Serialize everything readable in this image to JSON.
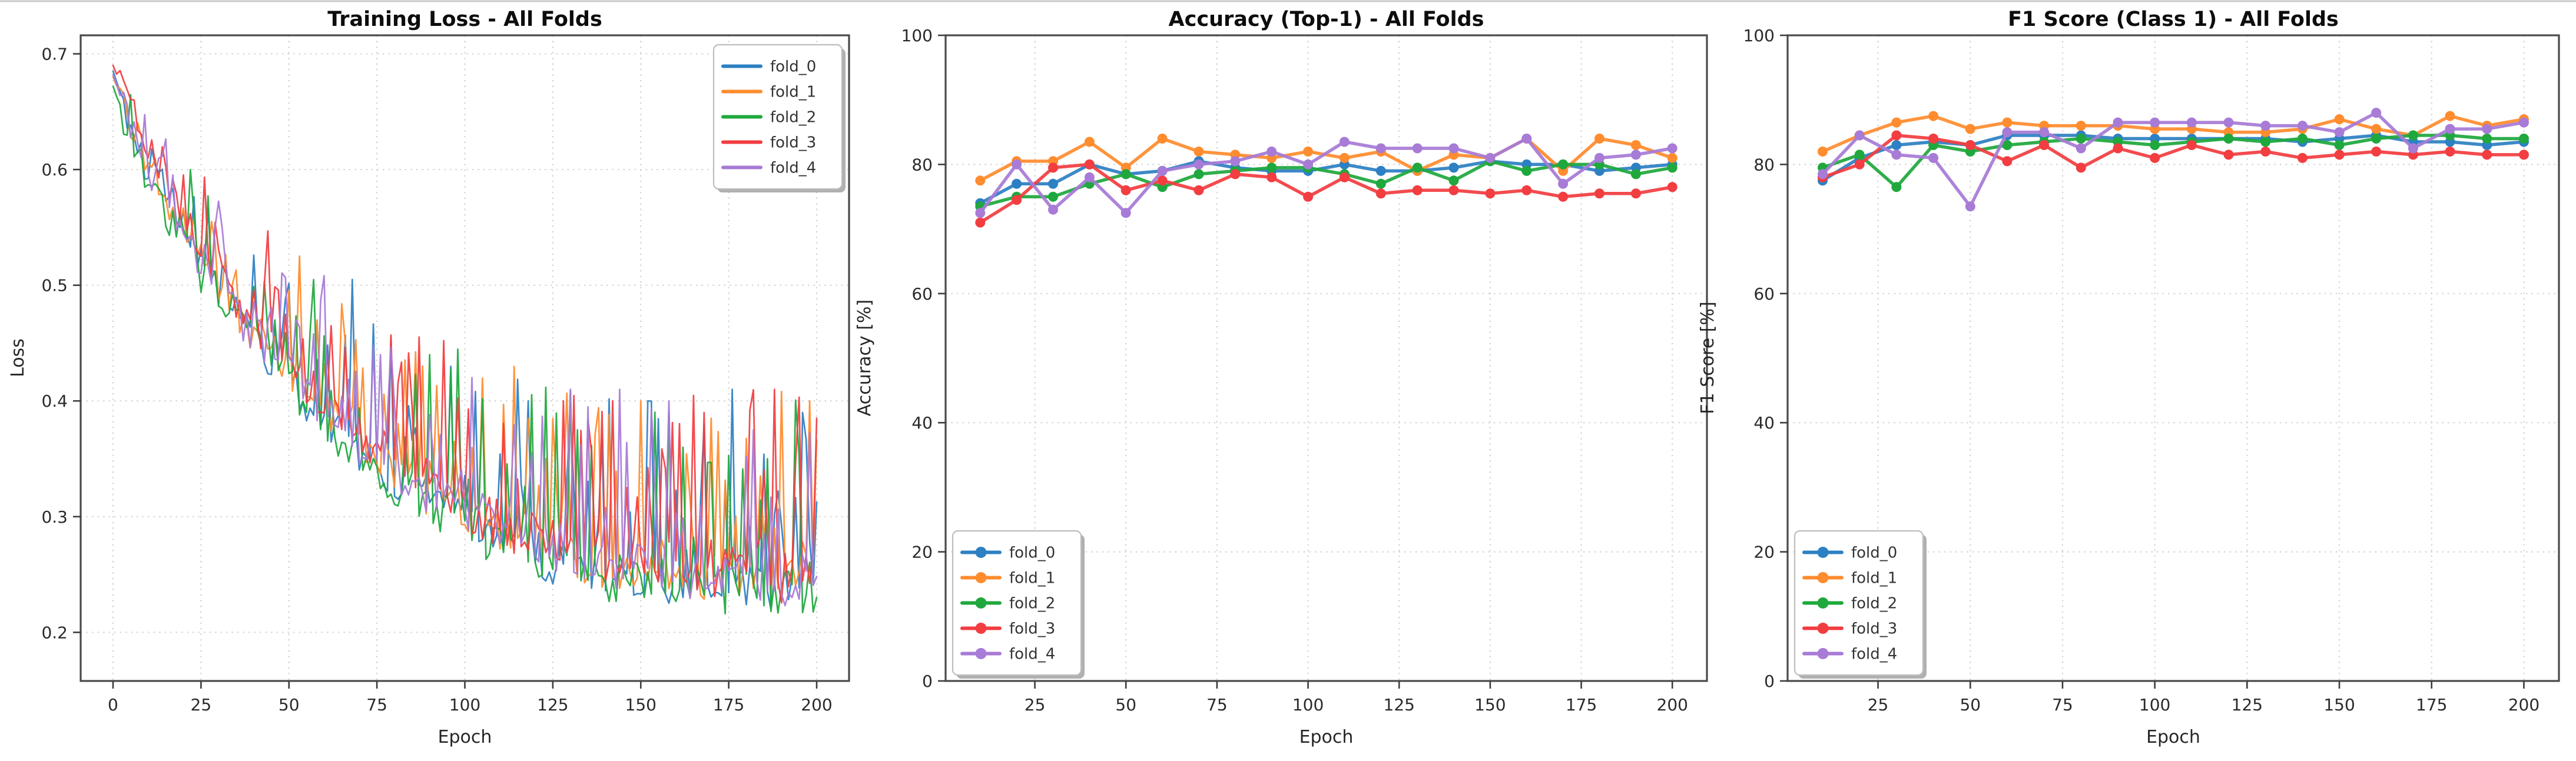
{
  "figure": {
    "background": "#ffffff",
    "top_border_color": "#c9c9c9"
  },
  "colors": {
    "fold_0": "#2d80c3",
    "fold_1": "#ff8c2e",
    "fold_2": "#1fa83d",
    "fold_3": "#f23d41",
    "fold_4": "#a77bd6",
    "spine": "#4a4a4a",
    "grid": "#d4d4d4",
    "tick": "#3d3d3d",
    "legend_border": "#bdbdbd",
    "legend_shadow": "#b0b0b0",
    "legend_background": "#ffffff"
  },
  "legend_labels": [
    "fold_0",
    "fold_1",
    "fold_2",
    "fold_3",
    "fold_4"
  ],
  "chart_data": [
    {
      "type": "line",
      "title": "Training Loss - All Folds",
      "xlabel": "Epoch",
      "ylabel": "Loss",
      "xlim": [
        -9.2,
        209.2
      ],
      "ylim": [
        0.158,
        0.716
      ],
      "xticks": [
        0,
        25,
        50,
        75,
        100,
        125,
        150,
        175,
        200
      ],
      "yticks": [
        0.2,
        0.3,
        0.4,
        0.5,
        0.6,
        0.7
      ],
      "ytick_decimals": 1,
      "grid": true,
      "markers": false,
      "legend_position": "upper-right",
      "epoch_max": 200,
      "trend_epochs": [
        0,
        10,
        20,
        30,
        40,
        50,
        60,
        70,
        80,
        90,
        100,
        110,
        120,
        130,
        140,
        150,
        160,
        170,
        180,
        190,
        200
      ],
      "noise": {
        "base_wiggle": 0.03,
        "wiggle_scale": 0.03,
        "spike_chance": 0.42,
        "spike_amp": 0.16,
        "spike_ref": 0.72,
        "spike_norm": 0.47,
        "clamp_min": 0.207,
        "clamp_max": 0.705
      },
      "series": [
        {
          "name": "fold_0",
          "color": "fold_0",
          "seed": 11,
          "trend": [
            0.685,
            0.595,
            0.545,
            0.49,
            0.455,
            0.415,
            0.385,
            0.355,
            0.335,
            0.315,
            0.295,
            0.28,
            0.268,
            0.258,
            0.252,
            0.248,
            0.243,
            0.242,
            0.238,
            0.235,
            0.24
          ],
          "spikes": [
            [
              68,
              0.505
            ],
            [
              96,
              0.43
            ],
            [
              118,
              0.4
            ],
            [
              152,
              0.4
            ],
            [
              176,
              0.41
            ],
            [
              196,
              0.39
            ]
          ]
        },
        {
          "name": "fold_1",
          "color": "fold_1",
          "seed": 22,
          "trend": [
            0.68,
            0.605,
            0.55,
            0.5,
            0.46,
            0.42,
            0.39,
            0.36,
            0.34,
            0.32,
            0.3,
            0.285,
            0.272,
            0.262,
            0.256,
            0.252,
            0.247,
            0.246,
            0.242,
            0.24,
            0.255
          ],
          "spikes": [
            [
              28,
              0.555
            ],
            [
              58,
              0.47
            ],
            [
              88,
              0.43
            ],
            [
              118,
              0.385
            ],
            [
              150,
              0.4
            ],
            [
              170,
              0.385
            ],
            [
              198,
              0.4
            ]
          ]
        },
        {
          "name": "fold_2",
          "color": "fold_2",
          "seed": 33,
          "trend": [
            0.672,
            0.585,
            0.535,
            0.483,
            0.448,
            0.41,
            0.378,
            0.35,
            0.328,
            0.31,
            0.292,
            0.278,
            0.265,
            0.255,
            0.248,
            0.243,
            0.238,
            0.234,
            0.23,
            0.228,
            0.235
          ],
          "spikes": [
            [
              22,
              0.6
            ],
            [
              46,
              0.47
            ],
            [
              90,
              0.44
            ],
            [
              132,
              0.375
            ],
            [
              162,
              0.36
            ],
            [
              186,
              0.35
            ]
          ]
        },
        {
          "name": "fold_3",
          "color": "fold_3",
          "seed": 44,
          "trend": [
            0.69,
            0.615,
            0.56,
            0.508,
            0.468,
            0.428,
            0.398,
            0.368,
            0.348,
            0.328,
            0.308,
            0.293,
            0.282,
            0.272,
            0.266,
            0.262,
            0.256,
            0.252,
            0.248,
            0.247,
            0.252
          ],
          "spikes": [
            [
              43,
              0.5
            ],
            [
              62,
              0.465
            ],
            [
              94,
              0.452
            ],
            [
              128,
              0.4
            ],
            [
              142,
              0.4
            ],
            [
              168,
              0.39
            ],
            [
              188,
              0.41
            ],
            [
              200,
              0.385
            ]
          ]
        },
        {
          "name": "fold_4",
          "color": "fold_4",
          "seed": 55,
          "trend": [
            0.682,
            0.6,
            0.548,
            0.495,
            0.458,
            0.419,
            0.388,
            0.358,
            0.338,
            0.32,
            0.302,
            0.288,
            0.276,
            0.266,
            0.26,
            0.255,
            0.25,
            0.248,
            0.244,
            0.242,
            0.248
          ],
          "spikes": [
            [
              52,
              0.47
            ],
            [
              76,
              0.44
            ],
            [
              102,
              0.42
            ],
            [
              130,
              0.41
            ],
            [
              144,
              0.41
            ],
            [
              158,
              0.4
            ],
            [
              182,
              0.375
            ]
          ]
        }
      ]
    },
    {
      "type": "line",
      "title": "Accuracy (Top-1) - All Folds",
      "xlabel": "Epoch",
      "ylabel": "Accuracy [%]",
      "xlim": [
        0.5,
        209.5
      ],
      "ylim": [
        0,
        100
      ],
      "xticks": [
        25,
        50,
        75,
        100,
        125,
        150,
        175,
        200
      ],
      "yticks": [
        0,
        20,
        40,
        60,
        80,
        100
      ],
      "ytick_decimals": 0,
      "grid": true,
      "markers": true,
      "legend_position": "lower-left",
      "x": [
        10,
        20,
        30,
        40,
        50,
        60,
        70,
        80,
        90,
        100,
        110,
        120,
        130,
        140,
        150,
        160,
        170,
        180,
        190,
        200
      ],
      "series": [
        {
          "name": "fold_0",
          "color": "fold_0",
          "values": [
            74,
            77,
            77,
            80,
            78.5,
            79,
            80.5,
            79.5,
            79,
            79,
            80,
            79,
            79,
            79.5,
            80.5,
            80,
            80,
            79,
            79.5,
            80
          ]
        },
        {
          "name": "fold_1",
          "color": "fold_1",
          "values": [
            77.5,
            80.5,
            80.5,
            83.5,
            79.5,
            84,
            82,
            81.5,
            81,
            82,
            81,
            82,
            79,
            81.5,
            81,
            84,
            79,
            84,
            83,
            81
          ]
        },
        {
          "name": "fold_2",
          "color": "fold_2",
          "values": [
            73.5,
            75,
            75,
            77,
            78.5,
            76.5,
            78.5,
            79,
            79.5,
            79.5,
            78.5,
            77,
            79.5,
            77.5,
            80.5,
            79,
            80,
            80,
            78.5,
            79.5
          ]
        },
        {
          "name": "fold_3",
          "color": "fold_3",
          "values": [
            71,
            74.5,
            79.5,
            80,
            76,
            77.5,
            76,
            78.5,
            78,
            75,
            78,
            75.5,
            76,
            76,
            75.5,
            76,
            75,
            75.5,
            75.5,
            76.5
          ]
        },
        {
          "name": "fold_4",
          "color": "fold_4",
          "values": [
            72.5,
            80,
            73,
            78,
            72.5,
            79,
            80,
            80.5,
            82,
            80,
            83.5,
            82.5,
            82.5,
            82.5,
            81,
            84,
            77,
            81,
            81.5,
            82.5
          ]
        }
      ]
    },
    {
      "type": "line",
      "title": "F1 Score (Class 1) - All Folds",
      "xlabel": "Epoch",
      "ylabel": "F1 Score [%]",
      "xlim": [
        0.5,
        209.5
      ],
      "ylim": [
        0,
        100
      ],
      "xticks": [
        25,
        50,
        75,
        100,
        125,
        150,
        175,
        200
      ],
      "yticks": [
        0,
        20,
        40,
        60,
        80,
        100
      ],
      "ytick_decimals": 0,
      "grid": true,
      "markers": true,
      "legend_position": "lower-left",
      "x": [
        10,
        20,
        30,
        40,
        50,
        60,
        70,
        80,
        90,
        100,
        110,
        120,
        130,
        140,
        150,
        160,
        170,
        180,
        190,
        200
      ],
      "series": [
        {
          "name": "fold_0",
          "color": "fold_0",
          "values": [
            77.5,
            81,
            83,
            83.5,
            83,
            84.5,
            84.5,
            84.5,
            84,
            84,
            84,
            84,
            84,
            83.5,
            84,
            84.5,
            83.5,
            83.5,
            83,
            83.5
          ]
        },
        {
          "name": "fold_1",
          "color": "fold_1",
          "values": [
            82,
            84.5,
            86.5,
            87.5,
            85.5,
            86.5,
            86,
            86,
            86,
            85.5,
            85.5,
            85,
            85,
            85.5,
            87,
            85.5,
            84.5,
            87.5,
            86,
            87
          ]
        },
        {
          "name": "fold_2",
          "color": "fold_2",
          "values": [
            79.5,
            81.5,
            76.5,
            83,
            82,
            83,
            83.5,
            84,
            83.5,
            83,
            83.5,
            84,
            83.5,
            84,
            83,
            84,
            84.5,
            84.5,
            84,
            84
          ]
        },
        {
          "name": "fold_3",
          "color": "fold_3",
          "values": [
            78,
            80,
            84.5,
            84,
            83,
            80.5,
            83,
            79.5,
            82.5,
            81,
            83,
            81.5,
            82,
            81,
            81.5,
            82,
            81.5,
            82,
            81.5,
            81.5
          ]
        },
        {
          "name": "fold_4",
          "color": "fold_4",
          "values": [
            78.5,
            84.5,
            81.5,
            81,
            73.5,
            85,
            85,
            82.5,
            86.5,
            86.5,
            86.5,
            86.5,
            86,
            86,
            85,
            88,
            82.5,
            85.5,
            85.5,
            86.5
          ]
        }
      ]
    }
  ]
}
